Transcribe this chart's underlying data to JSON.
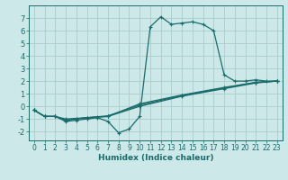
{
  "title": "",
  "xlabel": "Humidex (Indice chaleur)",
  "ylabel": "",
  "bg_color": "#cce8e8",
  "grid_color": "#aacccc",
  "line_color": "#1a6b6b",
  "xlim": [
    -0.5,
    23.5
  ],
  "ylim": [
    -2.7,
    8.0
  ],
  "xticks": [
    0,
    1,
    2,
    3,
    4,
    5,
    6,
    7,
    8,
    9,
    10,
    11,
    12,
    13,
    14,
    15,
    16,
    17,
    18,
    19,
    20,
    21,
    22,
    23
  ],
  "yticks": [
    -2,
    -1,
    0,
    1,
    2,
    3,
    4,
    5,
    6,
    7
  ],
  "curves": [
    [
      [
        0,
        -0.3
      ],
      [
        1,
        -0.8
      ],
      [
        2,
        -0.8
      ],
      [
        3,
        -1.2
      ],
      [
        4,
        -1.1
      ],
      [
        5,
        -1.0
      ],
      [
        6,
        -0.9
      ],
      [
        7,
        -1.2
      ],
      [
        8,
        -2.1
      ],
      [
        9,
        -1.8
      ],
      [
        10,
        -0.8
      ],
      [
        11,
        6.3
      ],
      [
        12,
        7.1
      ],
      [
        13,
        6.5
      ],
      [
        14,
        6.6
      ],
      [
        15,
        6.7
      ],
      [
        16,
        6.5
      ],
      [
        17,
        6.0
      ],
      [
        18,
        2.5
      ],
      [
        19,
        2.0
      ],
      [
        20,
        2.0
      ],
      [
        21,
        2.1
      ],
      [
        22,
        2.0
      ],
      [
        23,
        2.0
      ]
    ],
    [
      [
        0,
        -0.3
      ],
      [
        1,
        -0.8
      ],
      [
        2,
        -0.8
      ],
      [
        3,
        -1.1
      ],
      [
        4,
        -1.0
      ],
      [
        5,
        -0.9
      ],
      [
        6,
        -0.85
      ],
      [
        7,
        -0.8
      ],
      [
        10,
        0.2
      ],
      [
        14,
        0.9
      ],
      [
        18,
        1.5
      ],
      [
        21,
        1.9
      ],
      [
        23,
        2.0
      ]
    ],
    [
      [
        0,
        -0.3
      ],
      [
        1,
        -0.8
      ],
      [
        2,
        -0.8
      ],
      [
        3,
        -1.1
      ],
      [
        5,
        -0.9
      ],
      [
        7,
        -0.8
      ],
      [
        10,
        0.0
      ],
      [
        14,
        0.8
      ],
      [
        18,
        1.4
      ],
      [
        21,
        1.85
      ],
      [
        23,
        2.0
      ]
    ],
    [
      [
        0,
        -0.3
      ],
      [
        1,
        -0.8
      ],
      [
        2,
        -0.8
      ],
      [
        3,
        -1.0
      ],
      [
        5,
        -0.9
      ],
      [
        7,
        -0.75
      ],
      [
        10,
        0.1
      ],
      [
        14,
        0.85
      ],
      [
        18,
        1.45
      ],
      [
        21,
        1.9
      ],
      [
        23,
        2.0
      ]
    ]
  ],
  "tick_fontsize": 5.5,
  "xlabel_fontsize": 6.5,
  "marker_size": 3.0,
  "line_width": 0.9
}
